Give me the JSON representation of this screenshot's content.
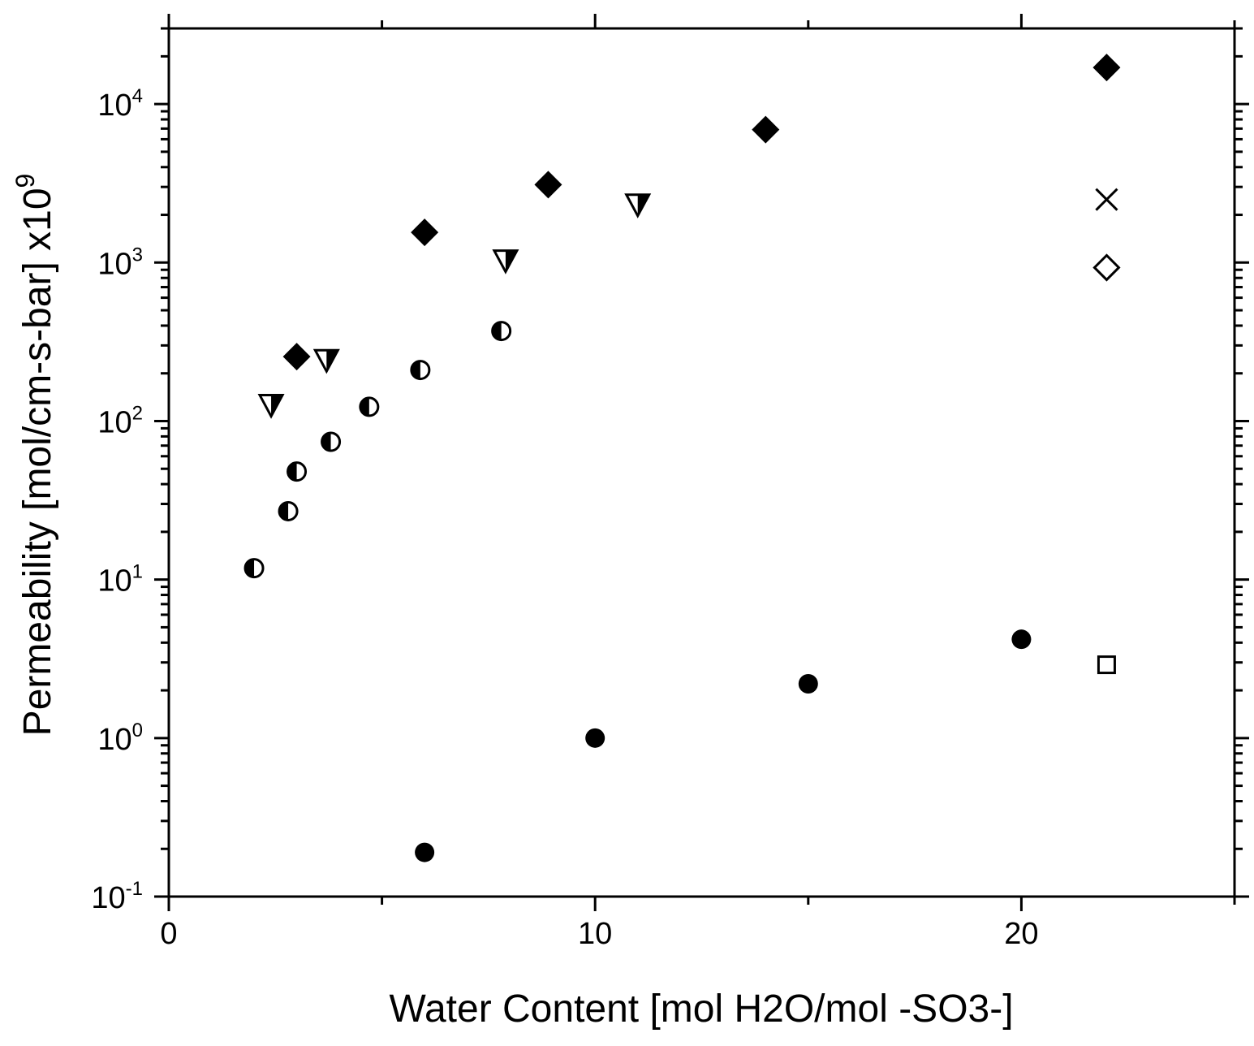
{
  "chart_data": {
    "type": "scatter",
    "title": "",
    "xlabel": "Water Content [mol H2O/mol -SO3-]",
    "ylabel": {
      "main": "Permeability [mol/cm-s-bar] x10",
      "exponent": "9"
    },
    "x_scale": "linear",
    "y_scale": "log",
    "xlim": [
      0,
      25
    ],
    "ylim": [
      0.1,
      30000
    ],
    "x_ticks": [
      {
        "value": 0,
        "label": "0"
      },
      {
        "value": 10,
        "label": "10"
      },
      {
        "value": 20,
        "label": "20"
      }
    ],
    "y_ticks": [
      {
        "value": 0.1,
        "base": "10",
        "exp": "-1"
      },
      {
        "value": 1,
        "base": "10",
        "exp": "0"
      },
      {
        "value": 10,
        "base": "10",
        "exp": "1"
      },
      {
        "value": 100,
        "base": "10",
        "exp": "2"
      },
      {
        "value": 1000,
        "base": "10",
        "exp": "3"
      },
      {
        "value": 10000,
        "base": "10",
        "exp": "4"
      }
    ],
    "grid": false,
    "legend": "none",
    "series": [
      {
        "marker": "filled-diamond",
        "points": [
          {
            "x": 3.0,
            "y": 255
          },
          {
            "x": 6.0,
            "y": 1550
          },
          {
            "x": 8.9,
            "y": 3100
          },
          {
            "x": 14.0,
            "y": 6900
          },
          {
            "x": 22.0,
            "y": 17000
          }
        ]
      },
      {
        "marker": "half-filled-down-triangle",
        "points": [
          {
            "x": 2.4,
            "y": 125
          },
          {
            "x": 3.7,
            "y": 240
          },
          {
            "x": 7.9,
            "y": 1020
          },
          {
            "x": 11.0,
            "y": 2300
          }
        ]
      },
      {
        "marker": "half-filled-circle",
        "points": [
          {
            "x": 2.0,
            "y": 11.8
          },
          {
            "x": 2.8,
            "y": 27
          },
          {
            "x": 3.0,
            "y": 48
          },
          {
            "x": 3.8,
            "y": 74
          },
          {
            "x": 4.7,
            "y": 123
          },
          {
            "x": 5.9,
            "y": 210
          },
          {
            "x": 7.8,
            "y": 370
          }
        ]
      },
      {
        "marker": "filled-circle",
        "points": [
          {
            "x": 6.0,
            "y": 0.19
          },
          {
            "x": 10.0,
            "y": 1.0
          },
          {
            "x": 15.0,
            "y": 2.2
          },
          {
            "x": 20.0,
            "y": 4.2
          }
        ]
      },
      {
        "marker": "x-cross",
        "points": [
          {
            "x": 22.0,
            "y": 2500
          }
        ]
      },
      {
        "marker": "open-diamond",
        "points": [
          {
            "x": 22.0,
            "y": 930
          }
        ]
      },
      {
        "marker": "open-square",
        "points": [
          {
            "x": 22.0,
            "y": 2.9
          }
        ]
      }
    ]
  }
}
